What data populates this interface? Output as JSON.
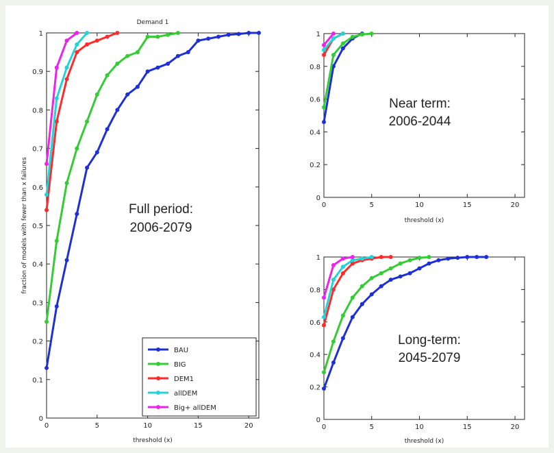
{
  "colors": {
    "BAU": "#1f2fd6",
    "BIG": "#33cc33",
    "DEM1": "#ff2a2a",
    "allDEM": "#22d3d8",
    "Big+ allDEM": "#ee22ee"
  },
  "chart_data": [
    {
      "id": "full",
      "type": "line",
      "title": "Demand 1",
      "overlay_lines": [
        "Full period:",
        "2006-2079"
      ],
      "xlabel": "threshold (x)",
      "ylabel": "fraction of models with fewer than x failures",
      "xlim": [
        0,
        21
      ],
      "ylim": [
        0,
        1
      ],
      "xticks": [
        0,
        5,
        10,
        15,
        20
      ],
      "yticks": [
        0,
        0.1,
        0.2,
        0.3,
        0.4,
        0.5,
        0.6,
        0.7,
        0.8,
        0.9,
        1
      ],
      "legend_position": "bottom-right",
      "legend_labels": [
        "BAU",
        "BIG",
        "DEM1",
        "allDEM",
        "Big+ allDEM"
      ],
      "series": [
        {
          "name": "BAU",
          "x": [
            0,
            1,
            2,
            3,
            4,
            5,
            6,
            7,
            8,
            9,
            10,
            11,
            12,
            13,
            14,
            15,
            16,
            17,
            18,
            19,
            20,
            21
          ],
          "y": [
            0.13,
            0.29,
            0.41,
            0.53,
            0.65,
            0.69,
            0.75,
            0.8,
            0.84,
            0.86,
            0.9,
            0.91,
            0.92,
            0.94,
            0.95,
            0.98,
            0.985,
            0.99,
            0.995,
            0.997,
            1.0,
            1.0
          ]
        },
        {
          "name": "BIG",
          "x": [
            0,
            1,
            2,
            3,
            4,
            5,
            6,
            7,
            8,
            9,
            10,
            11,
            12,
            13
          ],
          "y": [
            0.25,
            0.46,
            0.61,
            0.7,
            0.77,
            0.84,
            0.89,
            0.92,
            0.94,
            0.95,
            0.99,
            0.99,
            0.995,
            1.0
          ]
        },
        {
          "name": "DEM1",
          "x": [
            0,
            1,
            2,
            3,
            4,
            5,
            6,
            7
          ],
          "y": [
            0.54,
            0.77,
            0.88,
            0.95,
            0.97,
            0.98,
            0.99,
            1.0
          ]
        },
        {
          "name": "allDEM",
          "x": [
            0,
            1,
            2,
            3,
            4
          ],
          "y": [
            0.58,
            0.83,
            0.91,
            0.97,
            1.0
          ]
        },
        {
          "name": "Big+ allDEM",
          "x": [
            0,
            1,
            2,
            3
          ],
          "y": [
            0.66,
            0.91,
            0.98,
            1.0
          ]
        }
      ]
    },
    {
      "id": "near",
      "type": "line",
      "title": "",
      "overlay_lines": [
        "Near term:",
        "2006-2044"
      ],
      "xlabel": "threshold (x)",
      "ylabel": "",
      "xlim": [
        0,
        21
      ],
      "ylim": [
        0,
        1
      ],
      "xticks": [
        0,
        5,
        10,
        15,
        20
      ],
      "yticks": [
        0,
        0.2,
        0.4,
        0.6,
        0.8,
        1
      ],
      "series": [
        {
          "name": "BAU",
          "x": [
            0,
            1,
            2,
            3,
            4
          ],
          "y": [
            0.46,
            0.8,
            0.91,
            0.97,
            1.0
          ]
        },
        {
          "name": "BIG",
          "x": [
            0,
            1,
            2,
            3,
            4,
            5
          ],
          "y": [
            0.55,
            0.87,
            0.94,
            0.98,
            0.995,
            1.0
          ]
        },
        {
          "name": "DEM1",
          "x": [
            0,
            1,
            2
          ],
          "y": [
            0.87,
            0.97,
            1.0
          ]
        },
        {
          "name": "allDEM",
          "x": [
            0,
            1,
            2
          ],
          "y": [
            0.9,
            0.97,
            1.0
          ]
        },
        {
          "name": "Big+ allDEM",
          "x": [
            0,
            1
          ],
          "y": [
            0.93,
            1.0
          ]
        }
      ]
    },
    {
      "id": "long",
      "type": "line",
      "title": "",
      "overlay_lines": [
        "Long-term:",
        "2045-2079"
      ],
      "xlabel": "threshold (x)",
      "ylabel": "",
      "xlim": [
        0,
        21
      ],
      "ylim": [
        0,
        1
      ],
      "xticks": [
        0,
        5,
        10,
        15,
        20
      ],
      "yticks": [
        0,
        0.2,
        0.4,
        0.6,
        0.8,
        1
      ],
      "series": [
        {
          "name": "BAU",
          "x": [
            0,
            1,
            2,
            3,
            4,
            5,
            6,
            7,
            8,
            9,
            10,
            11,
            12,
            13,
            14,
            15,
            16,
            17
          ],
          "y": [
            0.19,
            0.35,
            0.5,
            0.63,
            0.71,
            0.77,
            0.82,
            0.86,
            0.88,
            0.9,
            0.93,
            0.96,
            0.98,
            0.99,
            0.995,
            1.0,
            1.0,
            1.0
          ]
        },
        {
          "name": "BIG",
          "x": [
            0,
            1,
            2,
            3,
            4,
            5,
            6,
            7,
            8,
            9,
            10,
            11
          ],
          "y": [
            0.29,
            0.48,
            0.64,
            0.75,
            0.82,
            0.87,
            0.9,
            0.93,
            0.96,
            0.98,
            0.995,
            1.0
          ]
        },
        {
          "name": "DEM1",
          "x": [
            0,
            1,
            2,
            3,
            4,
            5,
            6,
            7
          ],
          "y": [
            0.58,
            0.8,
            0.9,
            0.96,
            0.98,
            0.99,
            1.0,
            1.0
          ]
        },
        {
          "name": "allDEM",
          "x": [
            0,
            1,
            2,
            3,
            4,
            5
          ],
          "y": [
            0.63,
            0.86,
            0.94,
            0.98,
            0.99,
            1.0
          ]
        },
        {
          "name": "Big+ allDEM",
          "x": [
            0,
            1,
            2,
            3
          ],
          "y": [
            0.75,
            0.95,
            0.99,
            1.0
          ]
        }
      ]
    }
  ]
}
